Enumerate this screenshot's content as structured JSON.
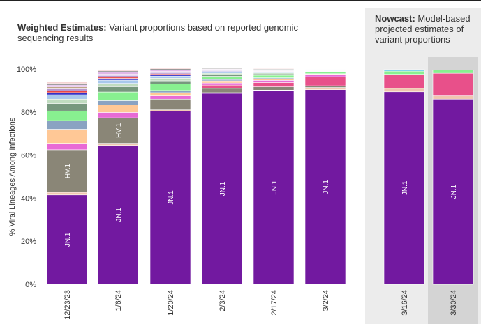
{
  "weighted": {
    "title_bold": "Weighted Estimates:",
    "title_rest": " Variant proportions based on reported genomic sequencing results"
  },
  "nowcast": {
    "title_bold": "Nowcast:",
    "title_rest": " Model-based projected estimates of variant proportions"
  },
  "chart_data": {
    "type": "bar",
    "stacked": true,
    "ylabel": "% Viral Lineages Among Infections",
    "ylim": [
      0,
      100
    ],
    "yticks": [
      "0%",
      "20%",
      "40%",
      "60%",
      "80%",
      "100%"
    ],
    "categories": [
      "12/23/23",
      "1/6/24",
      "1/20/24",
      "2/3/24",
      "2/17/24",
      "3/2/24",
      "3/16/24",
      "3/30/24"
    ],
    "nowcast_categories": [
      "3/16/24",
      "3/30/24"
    ],
    "highlighted_category": "3/30/24",
    "series": [
      {
        "name": "JN.1",
        "color": "#7219a0",
        "values": [
          41.5,
          64.5,
          80.5,
          88.7,
          90.0,
          90.4,
          89.4,
          86.0
        ],
        "labeled": true
      },
      {
        "color": "#f0c6b0",
        "values": [
          1.2,
          1.0,
          0.5,
          0.3,
          0.2,
          1.0,
          1.6,
          1.5
        ]
      },
      {
        "name": "HV.1",
        "color": "#8a8677",
        "values": [
          19.8,
          11.8,
          5.0,
          2.0,
          1.5,
          0.8,
          0,
          0
        ],
        "labeled": true
      },
      {
        "color": "#e8508a",
        "values": [
          0,
          0,
          0,
          1.5,
          2.0,
          4.2,
          6.5,
          10.5
        ]
      },
      {
        "color": "#e86ad6",
        "values": [
          3.0,
          2.5,
          1.5,
          1.0,
          1.0,
          0.8,
          0,
          0
        ]
      },
      {
        "color": "#ffc896",
        "values": [
          6.5,
          3.5,
          1.5,
          1.0,
          0.8,
          0.4,
          0,
          0
        ]
      },
      {
        "color": "#8aa3c2",
        "values": [
          4.0,
          2.0,
          1.0,
          0.6,
          0.4,
          0.2,
          0,
          0
        ]
      },
      {
        "color": "#88f090",
        "values": [
          4.5,
          4.0,
          3.0,
          1.5,
          1.2,
          0.8,
          1.5,
          1.5
        ]
      },
      {
        "color": "#77987e",
        "values": [
          3.5,
          2.5,
          1.5,
          0.8,
          0.6,
          0.2,
          0,
          0
        ]
      },
      {
        "color": "#c0dcc0",
        "values": [
          2.0,
          1.5,
          1.2,
          0.6,
          0.5,
          0.2,
          0,
          0
        ]
      },
      {
        "color": "#a8c8ec",
        "values": [
          2.0,
          1.5,
          1.0,
          0.6,
          0.3,
          0.2,
          0,
          0
        ]
      },
      {
        "color": "#5cc8e8",
        "values": [
          0,
          0,
          0,
          0,
          0,
          0,
          0.7,
          0
        ]
      },
      {
        "color": "#3232c8",
        "values": [
          1.0,
          0.8,
          0.6,
          0.3,
          0.2,
          0.1,
          0,
          0
        ]
      },
      {
        "color": "#e84848",
        "values": [
          0.8,
          0.6,
          0.4,
          0.2,
          0.2,
          0.1,
          0,
          0
        ]
      },
      {
        "color": "#b898d0",
        "values": [
          1.0,
          0.8,
          0.6,
          0.3,
          0.3,
          0.2,
          0,
          0
        ]
      },
      {
        "color": "#9a6e40",
        "values": [
          0.8,
          0.5,
          0.5,
          0.3,
          0.2,
          0.1,
          0,
          0
        ]
      },
      {
        "color": "#e0b8e8",
        "values": [
          1.0,
          1.0,
          0.7,
          0.3,
          0.3,
          0.2,
          0,
          0
        ]
      },
      {
        "color": "#505050",
        "values": [
          0.6,
          0.5,
          0.5,
          0.3,
          0.3,
          0.1,
          0,
          0
        ]
      },
      {
        "color": "#f4d4d4",
        "values": [
          1.0,
          0.7,
          0.5,
          0.3,
          0.3,
          0.1,
          0,
          0
        ]
      }
    ]
  },
  "colors": {
    "nowcast_panel": "#ececec",
    "highlight_band": "#d4d4d4",
    "bar_separator": "#ffffff"
  }
}
